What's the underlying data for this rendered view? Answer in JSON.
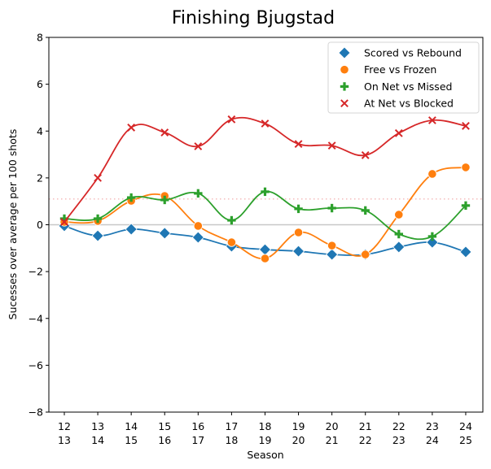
{
  "chart_data": {
    "type": "line",
    "title": "Finishing Bjugstad",
    "xlabel": "Season",
    "ylabel": "Sucesses over average per 100 shots",
    "ylim": [
      -8,
      8
    ],
    "yticks": [
      -8,
      -6,
      -4,
      -2,
      0,
      2,
      4,
      6,
      8
    ],
    "categories": [
      "12\n13",
      "13\n14",
      "14\n15",
      "15\n16",
      "16\n17",
      "17\n18",
      "18\n19",
      "19\n20",
      "20\n21",
      "21\n22",
      "22\n23",
      "23\n24",
      "24\n25"
    ],
    "category_lines": [
      [
        "12",
        "13"
      ],
      [
        "13",
        "14"
      ],
      [
        "14",
        "15"
      ],
      [
        "15",
        "16"
      ],
      [
        "16",
        "17"
      ],
      [
        "17",
        "18"
      ],
      [
        "18",
        "19"
      ],
      [
        "19",
        "20"
      ],
      [
        "20",
        "21"
      ],
      [
        "21",
        "22"
      ],
      [
        "22",
        "23"
      ],
      [
        "23",
        "24"
      ],
      [
        "24",
        "25"
      ]
    ],
    "reference_lines": [
      {
        "y": 0,
        "style": "solid",
        "color": "#c8c8c8"
      },
      {
        "y": 1.1,
        "style": "dotted",
        "color": "#f4b6b6"
      }
    ],
    "grid": false,
    "legend_position": "upper right",
    "series": [
      {
        "name": "Scored vs Rebound",
        "color": "#1f77b4",
        "marker": "diamond",
        "values": [
          -0.05,
          -0.47,
          -0.19,
          -0.36,
          -0.54,
          -0.92,
          -1.06,
          -1.13,
          -1.27,
          -1.27,
          -0.95,
          -0.75,
          -1.16
        ]
      },
      {
        "name": "Free vs Frozen",
        "color": "#ff7f0e",
        "marker": "circle",
        "values": [
          0.12,
          0.16,
          1.02,
          1.23,
          -0.05,
          -0.75,
          -1.44,
          -0.33,
          -0.89,
          -1.27,
          0.43,
          2.17,
          2.45
        ]
      },
      {
        "name": "On Net vs Missed",
        "color": "#2ca02c",
        "marker": "plus",
        "values": [
          0.26,
          0.26,
          1.16,
          1.06,
          1.34,
          0.19,
          1.41,
          0.68,
          0.71,
          0.61,
          -0.4,
          -0.5,
          0.82
        ]
      },
      {
        "name": "At Net vs Blocked",
        "color": "#d62728",
        "marker": "x",
        "values": [
          0.12,
          2.0,
          4.15,
          3.94,
          3.35,
          4.5,
          4.32,
          3.45,
          3.38,
          2.97,
          3.91,
          4.46,
          4.22
        ]
      }
    ]
  }
}
